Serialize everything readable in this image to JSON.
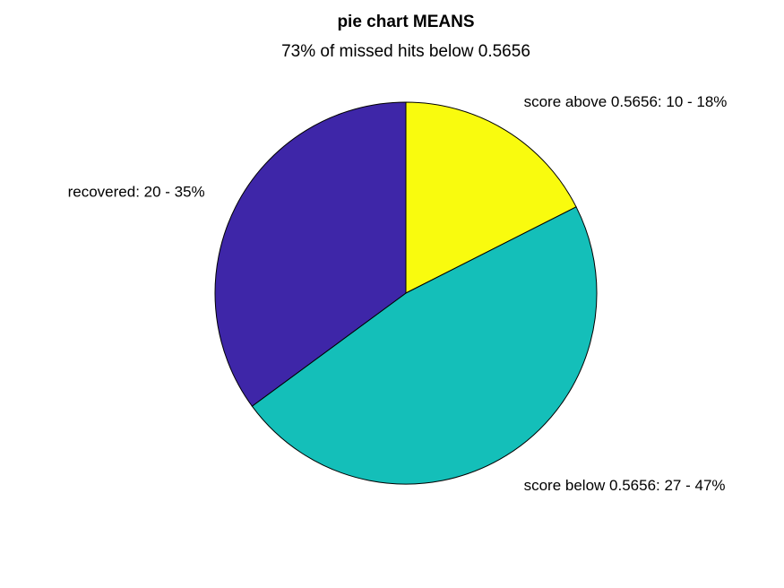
{
  "chart_data": {
    "type": "pie",
    "title": "pie chart MEANS",
    "subtitle": "73% of missed hits below 0.5656",
    "start_angle_deg": 90,
    "direction": "clockwise",
    "slices": [
      {
        "label": "score above 0.5656: 10 - 18%",
        "value": 10,
        "color": "#f9fb0e"
      },
      {
        "label": "score below 0.5656: 27 - 47%",
        "value": 27,
        "color": "#14bfb9"
      },
      {
        "label": "recovered: 20 - 35%",
        "value": 20,
        "color": "#3e26a8"
      }
    ]
  }
}
